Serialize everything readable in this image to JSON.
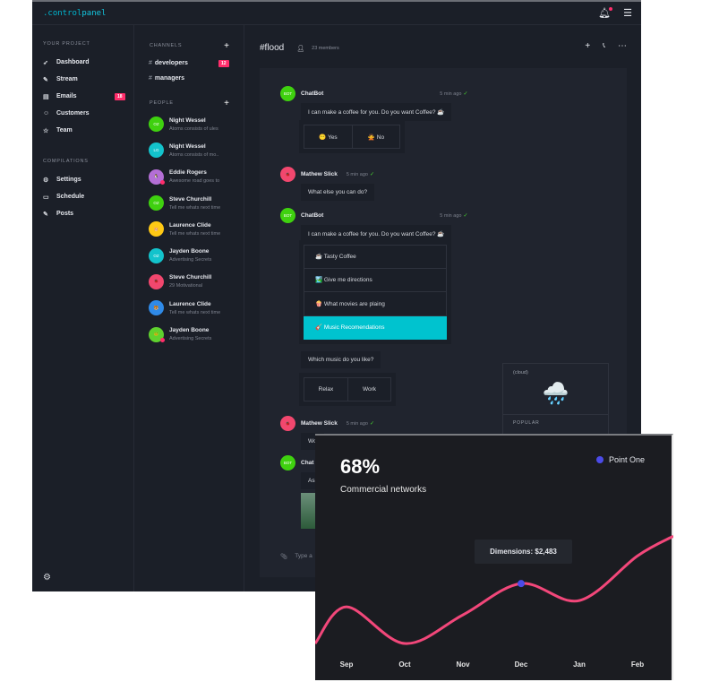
{
  "app": {
    "logo_prefix": ".control",
    "logo_suffix": "panel"
  },
  "topbar": {
    "icons": [
      "bell-icon",
      "menu-icon"
    ]
  },
  "sidebar": {
    "section1": "YOUR PROJECT",
    "items": [
      {
        "label": "Dashboard",
        "icon": "rocket-icon"
      },
      {
        "label": "Stream",
        "icon": "pencil-icon"
      },
      {
        "label": "Emails",
        "icon": "mail-icon",
        "badge": "18"
      },
      {
        "label": "Customers",
        "icon": "users-icon"
      },
      {
        "label": "Team",
        "icon": "star-icon"
      }
    ],
    "section2": "COMPILATIONS",
    "items2": [
      {
        "label": "Settings",
        "icon": "gear-icon"
      },
      {
        "label": "Schedule",
        "icon": "calendar-icon"
      },
      {
        "label": "Posts",
        "icon": "pencil-icon"
      }
    ]
  },
  "channels": {
    "title": "CHANNELS",
    "items": [
      {
        "label": "developers",
        "badge": "12"
      },
      {
        "label": "managers"
      }
    ],
    "people_title": "PEOPLE",
    "people": [
      {
        "name": "Night Wessel",
        "status": "Atoms consists of ules",
        "initials": "OZ",
        "color": "#3fd10f"
      },
      {
        "name": "Night Wessel",
        "status": "Atoms consists of mo..",
        "initials": "LG",
        "color": "#13c3cc"
      },
      {
        "name": "Eddie Rogers",
        "status": "Awesome road goes to",
        "initials": "🐧",
        "color": "#b46fd6",
        "online": true
      },
      {
        "name": "Steve Churchill",
        "status": "Tell me whats next time",
        "initials": "OZ",
        "color": "#3fd10f"
      },
      {
        "name": "Laurence Clide",
        "status": "Tell me whats next time",
        "initials": "🐹",
        "color": "#ffc914"
      },
      {
        "name": "Jayden Boone",
        "status": "Advertising Secrets",
        "initials": "OZ",
        "color": "#13c3cc"
      },
      {
        "name": "Steve Churchill",
        "status": "29 Motivational",
        "initials": "🐞",
        "color": "#f2476e"
      },
      {
        "name": "Laurence Clide",
        "status": "Tell me whats next time",
        "initials": "🐯",
        "color": "#2f8ae8"
      },
      {
        "name": "Jayden Boone",
        "status": "Advertising Secrets",
        "initials": "🐸",
        "color": "#5fd12e",
        "online": true
      }
    ]
  },
  "chat": {
    "channel": "#flood",
    "members": "23 members",
    "messages": [
      {
        "author": "ChatBot",
        "time": "5 min ago",
        "text": "I can make a coffee for you. Do you want Coffee? ☕",
        "options": [
          "😶 Yes",
          "🙅 No"
        ]
      },
      {
        "author": "Mathew Slick",
        "time": "5 min ago",
        "text": "What else you can do?"
      },
      {
        "author": "ChatBot",
        "time": "5 min ago",
        "text": "I can make a coffee for you. Do you want Coffee? ☕",
        "list": [
          "☕ Tasty Coffee",
          "🏞️ Give me directions",
          "🍿 What movies are plaing",
          "🎸 Music Recomendations"
        ]
      },
      {
        "text": "Which music do you like?",
        "options": [
          "Relax",
          "Work"
        ]
      },
      {
        "author": "Mathew Slick",
        "time": "5 min ago",
        "text": "Wo"
      },
      {
        "author": "Chat",
        "text": "As"
      }
    ],
    "bot_label": "BOT",
    "weather": {
      "label": "(cloud)",
      "emoji": "🌧️",
      "section": "POPULAR"
    },
    "composer_placeholder": "Type a"
  },
  "card": {
    "percent": "68%",
    "subtitle": "Commercial networks",
    "legend": "Point One",
    "tooltip": "Dimensions: $2,483"
  },
  "chart_data": {
    "type": "line",
    "categories": [
      "Sep",
      "Oct",
      "Nov",
      "Dec",
      "Jan",
      "Feb"
    ],
    "series": [
      {
        "name": "Point One",
        "values": [
          1900,
          985,
          1700,
          2483,
          2058,
          3176
        ],
        "start": 985,
        "end": 3668,
        "color": "#f2477a"
      }
    ],
    "highlight": {
      "category": "Dec",
      "value": 2483,
      "color": "#4b4be8"
    },
    "grid": false
  }
}
